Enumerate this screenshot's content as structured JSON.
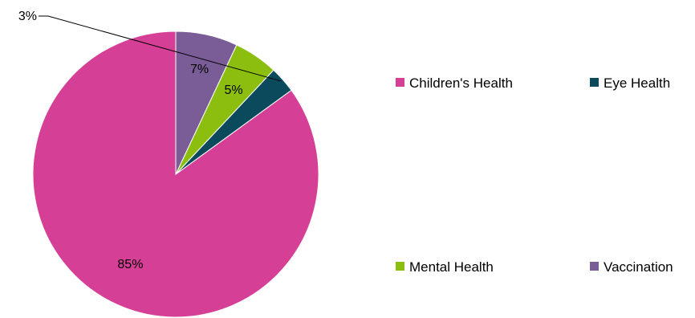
{
  "chart_data": {
    "type": "pie",
    "title": "",
    "categories": [
      "Children's Health",
      "Eye Health",
      "Mental Health",
      "Vaccination"
    ],
    "values": [
      85,
      3,
      5,
      7
    ],
    "data_labels": [
      "85%",
      "3%",
      "5%",
      "7%"
    ],
    "colors": [
      "#d63f96",
      "#0b4a5c",
      "#8cbe0f",
      "#7a5c96"
    ],
    "start_angle_deg": 0,
    "direction": "counterclockwise",
    "legend": {
      "placement": "right",
      "items": [
        "Children's Health",
        "Eye Health",
        "Mental Health",
        "Vaccination"
      ]
    }
  }
}
